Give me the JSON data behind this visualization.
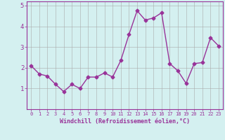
{
  "x": [
    0,
    1,
    2,
    3,
    4,
    5,
    6,
    7,
    8,
    9,
    10,
    11,
    12,
    13,
    14,
    15,
    16,
    17,
    18,
    19,
    20,
    21,
    22,
    23
  ],
  "y": [
    2.1,
    1.7,
    1.6,
    1.2,
    0.85,
    1.2,
    1.0,
    1.55,
    1.55,
    1.75,
    1.55,
    2.35,
    3.6,
    4.75,
    4.3,
    4.4,
    4.65,
    2.2,
    1.85,
    1.25,
    2.2,
    2.25,
    3.45,
    3.05
  ],
  "line_color": "#993399",
  "marker": "D",
  "markersize": 2.5,
  "linewidth": 1.0,
  "bg_color": "#d4f0f0",
  "grid_color": "#aaaaaa",
  "xlabel": "Windchill (Refroidissement éolien,°C)",
  "xlabel_color": "#993399",
  "tick_color": "#993399",
  "ylim": [
    0,
    5.2
  ],
  "xlim": [
    -0.5,
    23.5
  ],
  "yticks": [
    1,
    2,
    3,
    4,
    5
  ],
  "xticks": [
    0,
    1,
    2,
    3,
    4,
    5,
    6,
    7,
    8,
    9,
    10,
    11,
    12,
    13,
    14,
    15,
    16,
    17,
    18,
    19,
    20,
    21,
    22,
    23
  ]
}
